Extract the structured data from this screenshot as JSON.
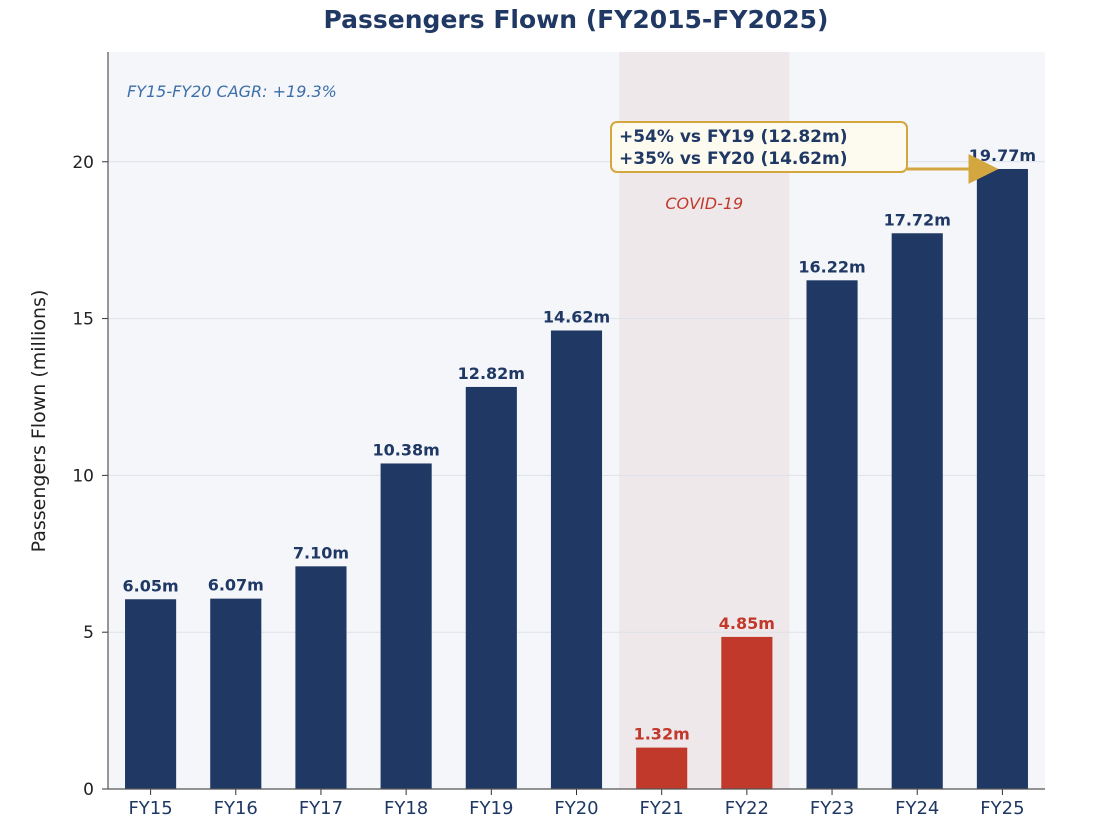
{
  "chart_data": {
    "type": "bar",
    "title": "Passengers Flown (FY2015-FY2025)",
    "xlabel": "",
    "ylabel": "Passengers Flown (millions)",
    "ylim": [
      0,
      23.5
    ],
    "yticks": [
      0,
      5,
      10,
      15,
      20
    ],
    "grid": true,
    "categories": [
      "FY15",
      "FY16",
      "FY17",
      "FY18",
      "FY19",
      "FY20",
      "FY21",
      "FY22",
      "FY23",
      "FY24",
      "FY25"
    ],
    "values": [
      6.05,
      6.07,
      7.1,
      10.38,
      12.82,
      14.62,
      1.32,
      4.85,
      16.22,
      17.72,
      19.77
    ],
    "data_labels": [
      "6.05m",
      "6.07m",
      "7.10m",
      "10.38m",
      "12.82m",
      "14.62m",
      "1.32m",
      "4.85m",
      "16.22m",
      "17.72m",
      "19.77m"
    ],
    "highlight_categories": [
      "FY21",
      "FY22"
    ],
    "colors": {
      "bar": "#1f3864",
      "bar_highlight": "#c0392b",
      "title": "#1f3864",
      "plot_bg": "#f4f6fa",
      "covid_band": "#efe8ea",
      "cagr_text": "#3d6fa8",
      "covid_text": "#c0392b",
      "annotation_border": "#d4a640",
      "annotation_fill": "#fdfaf0",
      "arrow": "#d4a640",
      "axis_text": "#1f3864"
    },
    "annotations": {
      "cagr": "FY15-FY20 CAGR: +19.3%",
      "covid_label": "COVID-19",
      "covid_span": [
        "FY21",
        "FY22"
      ],
      "callout_lines": [
        "+54% vs FY19 (12.82m)",
        "+35% vs FY20 (14.62m)"
      ],
      "callout_target": "FY25"
    }
  }
}
